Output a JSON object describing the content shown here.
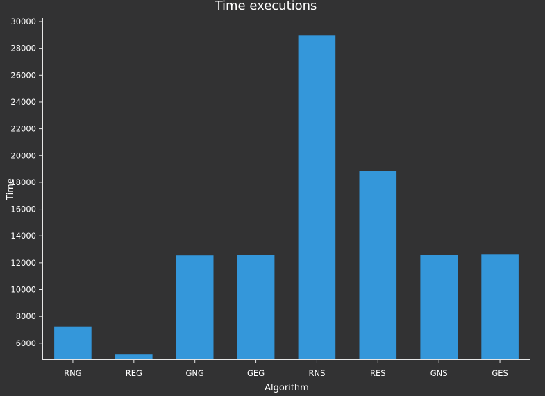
{
  "chart_data": {
    "type": "bar",
    "title": "Time executions",
    "xlabel": "Algorithm",
    "ylabel": "Time",
    "categories": [
      "RNG",
      "REG",
      "GNG",
      "GEG",
      "RNS",
      "RES",
      "GNS",
      "GES"
    ],
    "values": [
      7250,
      5150,
      12550,
      12600,
      28950,
      18850,
      12600,
      12650
    ],
    "ylim": [
      4800,
      30000
    ],
    "yticks": [
      6000,
      8000,
      10000,
      12000,
      14000,
      16000,
      18000,
      20000,
      22000,
      24000,
      26000,
      28000,
      30000
    ],
    "grid": false,
    "legend": "none",
    "bar_color": "#3497da",
    "background_color": "#323233",
    "text_color": "#ffffff"
  }
}
